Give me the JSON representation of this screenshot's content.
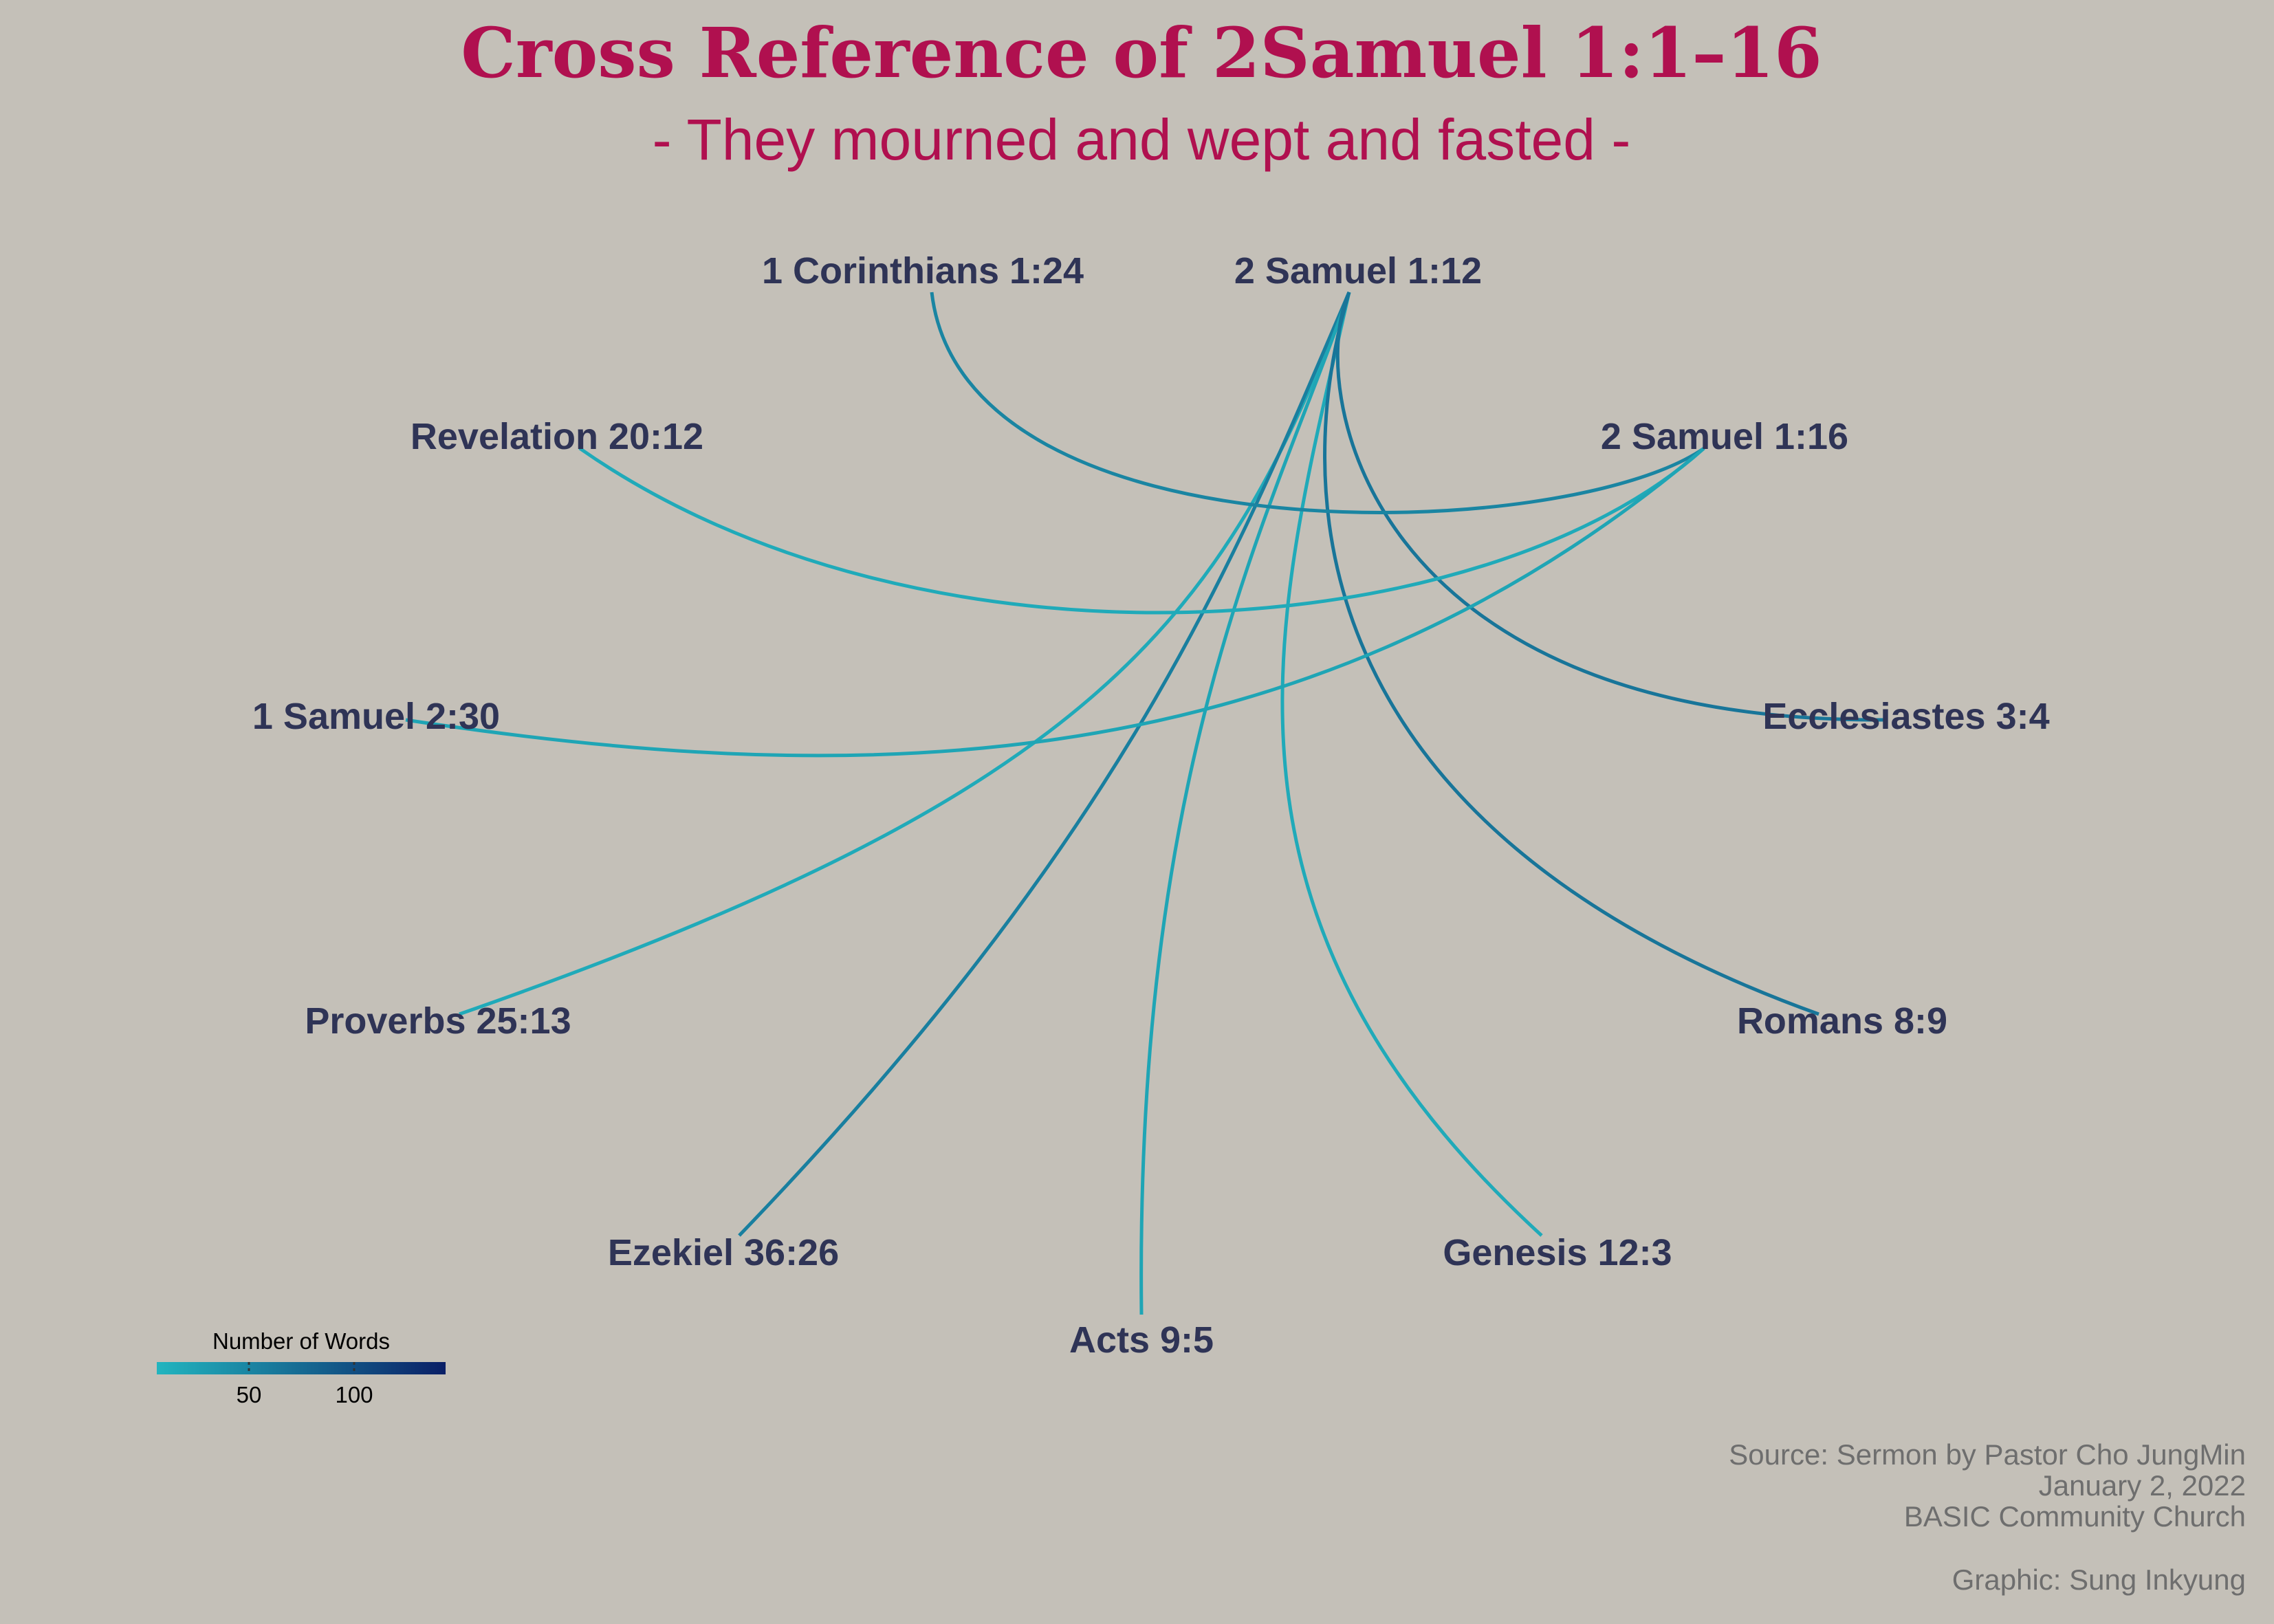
{
  "title": "Cross Reference of 2Samuel 1:1–16",
  "subtitle": "- They mourned and wept and fasted -",
  "nodes": {
    "cor": "1 Corinthians 1:24",
    "s12": "2 Samuel 1:12",
    "rev": "Revelation 20:12",
    "s16": "2 Samuel 1:16",
    "sam": "1 Samuel 2:30",
    "ecc": "Ecclesiastes 3:4",
    "pro": "Proverbs 25:13",
    "rom": "Romans 8:9",
    "eze": "Ezekiel 36:26",
    "gen": "Genesis 12:3",
    "act": "Acts 9:5"
  },
  "edges": [
    {
      "from": "s12",
      "to": "pro",
      "words": 20
    },
    {
      "from": "s12",
      "to": "eze",
      "words": 60
    },
    {
      "from": "s12",
      "to": "act",
      "words": 25
    },
    {
      "from": "s12",
      "to": "gen",
      "words": 20
    },
    {
      "from": "s12",
      "to": "rom",
      "words": 70
    },
    {
      "from": "s12",
      "to": "ecc",
      "words": 70
    },
    {
      "from": "cor",
      "to": "s16",
      "words": 55
    },
    {
      "from": "rev",
      "to": "s16",
      "words": 20
    },
    {
      "from": "sam",
      "to": "s16",
      "words": 25
    }
  ],
  "legend": {
    "title": "Number of Words",
    "ticks": [
      "50",
      "100"
    ],
    "color_low": "#22b5bf",
    "color_high": "#0a1f66"
  },
  "caption": {
    "source": "Source: Sermon by Pastor Cho JungMin",
    "date": "January 2, 2022",
    "church": "BASIC Community Church",
    "graphic": "Graphic: Sung Inkyung"
  },
  "colors": {
    "background": "#c4c0b8",
    "title": "#b0104f",
    "label": "#2f3456"
  }
}
